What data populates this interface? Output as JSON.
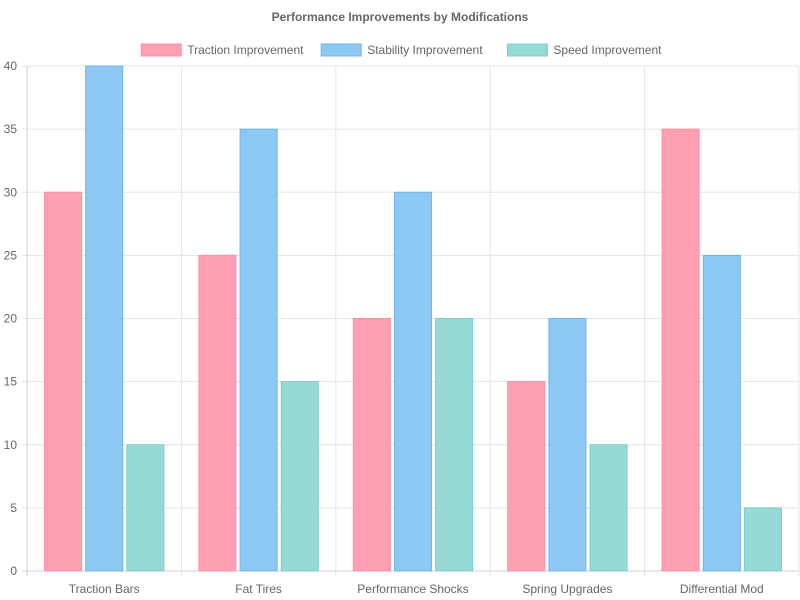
{
  "chart_data": {
    "type": "bar",
    "title": "Performance Improvements by Modifications",
    "categories": [
      "Traction Bars",
      "Fat Tires",
      "Performance Shocks",
      "Spring Upgrades",
      "Differential Mod"
    ],
    "series": [
      {
        "name": "Traction Improvement",
        "values": [
          30,
          25,
          20,
          15,
          35
        ],
        "color": "#ff9fb3",
        "border": "#ff8fa6"
      },
      {
        "name": "Stability Improvement",
        "values": [
          40,
          35,
          30,
          20,
          25
        ],
        "color": "#8cc8f2",
        "border": "#6fb6ec"
      },
      {
        "name": "Speed Improvement",
        "values": [
          10,
          15,
          20,
          10,
          5
        ],
        "color": "#96d9d6",
        "border": "#7dcfcb"
      }
    ],
    "ylim": [
      0,
      40
    ],
    "yticks": [
      0,
      5,
      10,
      15,
      20,
      25,
      30,
      35,
      40
    ],
    "xlabel": "",
    "ylabel": "",
    "grid": true,
    "legend": "top-center"
  }
}
